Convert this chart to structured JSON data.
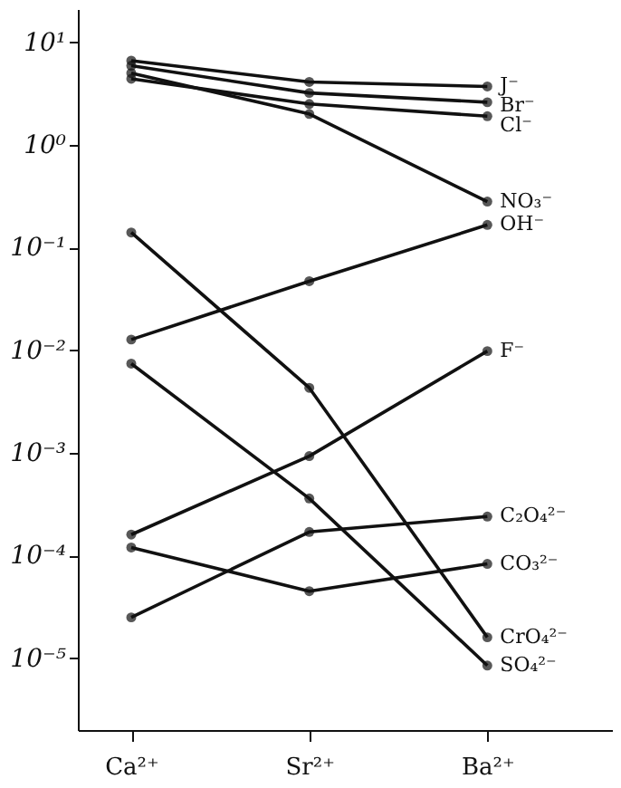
{
  "chart_data": {
    "type": "line",
    "categories": [
      "Ca²⁺",
      "Sr²⁺",
      "Ba²⁺"
    ],
    "log": true,
    "ylim": [
      2e-06,
      21
    ],
    "yticks": [
      {
        "value": 10,
        "label": "10¹"
      },
      {
        "value": 1,
        "label": "10⁰"
      },
      {
        "value": 0.1,
        "label": "10⁻¹"
      },
      {
        "value": 0.01,
        "label": "10⁻²"
      },
      {
        "value": 0.001,
        "label": "10⁻³"
      },
      {
        "value": 0.0001,
        "label": "10⁻⁴"
      },
      {
        "value": 1e-05,
        "label": "10⁻⁵"
      }
    ],
    "grid": false,
    "marker": "circle",
    "line_style": "solid",
    "series": [
      {
        "name": "J⁻",
        "color": "#111111",
        "values": [
          6.6,
          4.1,
          3.7
        ]
      },
      {
        "name": "Br⁻",
        "color": "#111111",
        "values": [
          5.9,
          3.2,
          2.6
        ]
      },
      {
        "name": "Cl⁻",
        "color": "#111111",
        "values": [
          4.4,
          2.5,
          1.9
        ]
      },
      {
        "name": "NO₃⁻",
        "color": "#111111",
        "values": [
          5.0,
          2.0,
          0.28
        ]
      },
      {
        "name": "OH⁻",
        "color": "#111111",
        "values": [
          0.0127,
          0.047,
          0.166
        ]
      },
      {
        "name": "F⁻",
        "color": "#111111",
        "values": [
          0.00016,
          0.00093,
          0.0098
        ]
      },
      {
        "name": "C₂O₄²⁻",
        "color": "#111111",
        "values": [
          2.5e-05,
          0.00017,
          0.00024
        ]
      },
      {
        "name": "CO₃²⁻",
        "color": "#111111",
        "values": [
          0.00012,
          4.5e-05,
          8.3e-05
        ]
      },
      {
        "name": "CrO₄²⁻",
        "color": "#111111",
        "values": [
          0.14,
          0.0043,
          1.6e-05
        ]
      },
      {
        "name": "SO₄²⁻",
        "color": "#111111",
        "values": [
          0.0074,
          0.00036,
          8.5e-06
        ]
      }
    ]
  }
}
